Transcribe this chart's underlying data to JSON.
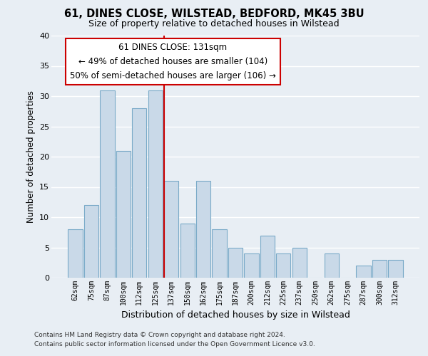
{
  "title": "61, DINES CLOSE, WILSTEAD, BEDFORD, MK45 3BU",
  "subtitle": "Size of property relative to detached houses in Wilstead",
  "xlabel": "Distribution of detached houses by size in Wilstead",
  "ylabel": "Number of detached properties",
  "bar_labels": [
    "62sqm",
    "75sqm",
    "87sqm",
    "100sqm",
    "112sqm",
    "125sqm",
    "137sqm",
    "150sqm",
    "162sqm",
    "175sqm",
    "187sqm",
    "200sqm",
    "212sqm",
    "225sqm",
    "237sqm",
    "250sqm",
    "262sqm",
    "275sqm",
    "287sqm",
    "300sqm",
    "312sqm"
  ],
  "bar_values": [
    8,
    12,
    31,
    21,
    28,
    31,
    16,
    9,
    16,
    8,
    5,
    4,
    7,
    4,
    5,
    0,
    4,
    0,
    2,
    3,
    3
  ],
  "bar_color": "#c9d9e8",
  "bar_edge_color": "#7aaac8",
  "highlight_line_color": "#cc0000",
  "ylim": [
    0,
    40
  ],
  "yticks": [
    0,
    5,
    10,
    15,
    20,
    25,
    30,
    35,
    40
  ],
  "annotation_title": "61 DINES CLOSE: 131sqm",
  "annotation_line1": "← 49% of detached houses are smaller (104)",
  "annotation_line2": "50% of semi-detached houses are larger (106) →",
  "annotation_box_color": "#ffffff",
  "annotation_box_edge": "#cc0000",
  "footer_line1": "Contains HM Land Registry data © Crown copyright and database right 2024.",
  "footer_line2": "Contains public sector information licensed under the Open Government Licence v3.0.",
  "background_color": "#e8eef4",
  "grid_color": "#ffffff"
}
